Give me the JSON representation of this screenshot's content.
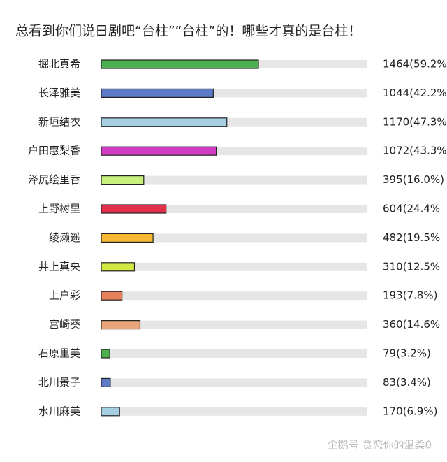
{
  "chart_data": {
    "type": "bar",
    "title": "总看到你们说日剧吧“台柱”“台柱”的！哪些才真的是台柱！",
    "categories": [
      "掘北真希",
      "长泽雅美",
      "新垣结衣",
      "户田惠梨香",
      "泽尻绘里香",
      "上野树里",
      "绫濑遥",
      "井上真央",
      "上户彩",
      "宫崎葵",
      "石原里美",
      "北川景子",
      "水川麻美"
    ],
    "values": [
      59.2,
      42.2,
      47.3,
      43.3,
      16.0,
      24.4,
      19.5,
      12.5,
      7.8,
      14.6,
      3.2,
      3.4,
      6.9
    ],
    "value_labels": [
      "1464(59.2%",
      "1044(42.2%",
      "1170(47.3%",
      "1072(43.3%",
      "395(16.0%)",
      "604(24.4%",
      "482(19.5%",
      "310(12.5%",
      "193(7.8%)",
      "360(14.6%",
      "79(3.2%)",
      "83(3.4%)",
      "170(6.9%)"
    ],
    "colors": [
      "#4caf50",
      "#5b7bc4",
      "#a6cfe2",
      "#d23cc0",
      "#c6ef7c",
      "#e2304c",
      "#f6b832",
      "#d2e843",
      "#e8805a",
      "#e9a477",
      "#4caf50",
      "#5b7bc4",
      "#a6cfe2"
    ],
    "xlim": [
      0,
      100
    ],
    "watermark": "企鹅号 贪恋你的温柔0"
  }
}
